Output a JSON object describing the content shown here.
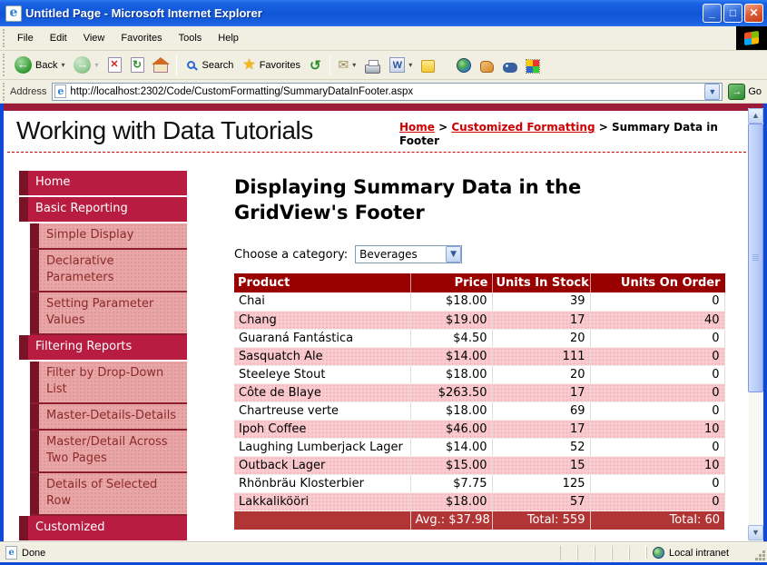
{
  "colors": {
    "frame": "#1048d8",
    "band": "#9b1b39",
    "grid-header": "#990000",
    "grid-footer": "#b23535",
    "row-alt": "#facbcf",
    "nav-main": "#b81c40",
    "nav-dark": "#7a1228",
    "nav-sub": "#e9a6a6",
    "nav-sub-text": "#8c2b2b",
    "link": "#cc0000"
  },
  "window": {
    "title": "Untitled Page - Microsoft Internet Explorer",
    "minimize": "_",
    "maximize": "□",
    "close": "✕"
  },
  "menu": {
    "items": [
      "File",
      "Edit",
      "View",
      "Favorites",
      "Tools",
      "Help"
    ]
  },
  "toolbar": {
    "back_label": "Back",
    "search_label": "Search",
    "favorites_label": "Favorites",
    "back_glyph": "←",
    "forward_glyph": "→",
    "stop_glyph": "✕",
    "refresh_glyph": "↻",
    "history_glyph": "↺",
    "mail_glyph": "✉",
    "word_glyph": "W",
    "star_glyph": "★",
    "dropdown_glyph": "▾"
  },
  "address_bar": {
    "label": "Address",
    "icon_glyph": "e",
    "url": "http://localhost:2302/Code/CustomFormatting/SummaryDataInFooter.aspx",
    "combo_glyph": "▼",
    "go_arrow": "→",
    "go_label": "Go"
  },
  "page": {
    "site_title": "Working with Data Tutorials",
    "breadcrumb": {
      "home": "Home",
      "sep1": " > ",
      "section": "Customized Formatting",
      "sep2": " > ",
      "current": "Summary Data in Footer"
    },
    "sidebar": {
      "items": [
        {
          "label": "Home",
          "level": 1
        },
        {
          "label": "Basic Reporting",
          "level": 1
        },
        {
          "label": "Simple Display",
          "level": 2
        },
        {
          "label": "Declarative Parameters",
          "level": 2
        },
        {
          "label": "Setting Parameter Values",
          "level": 2
        },
        {
          "label": "Filtering Reports",
          "level": 1
        },
        {
          "label": "Filter by Drop-Down List",
          "level": 2
        },
        {
          "label": "Master-Details-Details",
          "level": 2
        },
        {
          "label": "Master/Detail Across Two Pages",
          "level": 2
        },
        {
          "label": "Details of Selected Row",
          "level": 2
        },
        {
          "label": "Customized",
          "level": 1
        }
      ]
    },
    "main": {
      "heading": "Displaying Summary Data in the GridView's Footer",
      "category_label": "Choose a category:",
      "category_value": "Beverages",
      "table": {
        "columns": [
          "Product",
          "Price",
          "Units In Stock",
          "Units On Order"
        ],
        "rows": [
          [
            "Chai",
            "$18.00",
            "39",
            "0"
          ],
          [
            "Chang",
            "$19.00",
            "17",
            "40"
          ],
          [
            "Guaraná Fantástica",
            "$4.50",
            "20",
            "0"
          ],
          [
            "Sasquatch Ale",
            "$14.00",
            "111",
            "0"
          ],
          [
            "Steeleye Stout",
            "$18.00",
            "20",
            "0"
          ],
          [
            "Côte de Blaye",
            "$263.50",
            "17",
            "0"
          ],
          [
            "Chartreuse verte",
            "$18.00",
            "69",
            "0"
          ],
          [
            "Ipoh Coffee",
            "$46.00",
            "17",
            "10"
          ],
          [
            "Laughing Lumberjack Lager",
            "$14.00",
            "52",
            "0"
          ],
          [
            "Outback Lager",
            "$15.00",
            "15",
            "10"
          ],
          [
            "Rhönbräu Klosterbier",
            "$7.75",
            "125",
            "0"
          ],
          [
            "Lakkalikööri",
            "$18.00",
            "57",
            "0"
          ]
        ],
        "footer": [
          "",
          "Avg.: $37.98",
          "Total: 559",
          "Total: 60"
        ]
      }
    }
  },
  "scrollbar": {
    "up_glyph": "▲",
    "down_glyph": "▼"
  },
  "status_bar": {
    "done": "Done",
    "zone": "Local intranet"
  }
}
